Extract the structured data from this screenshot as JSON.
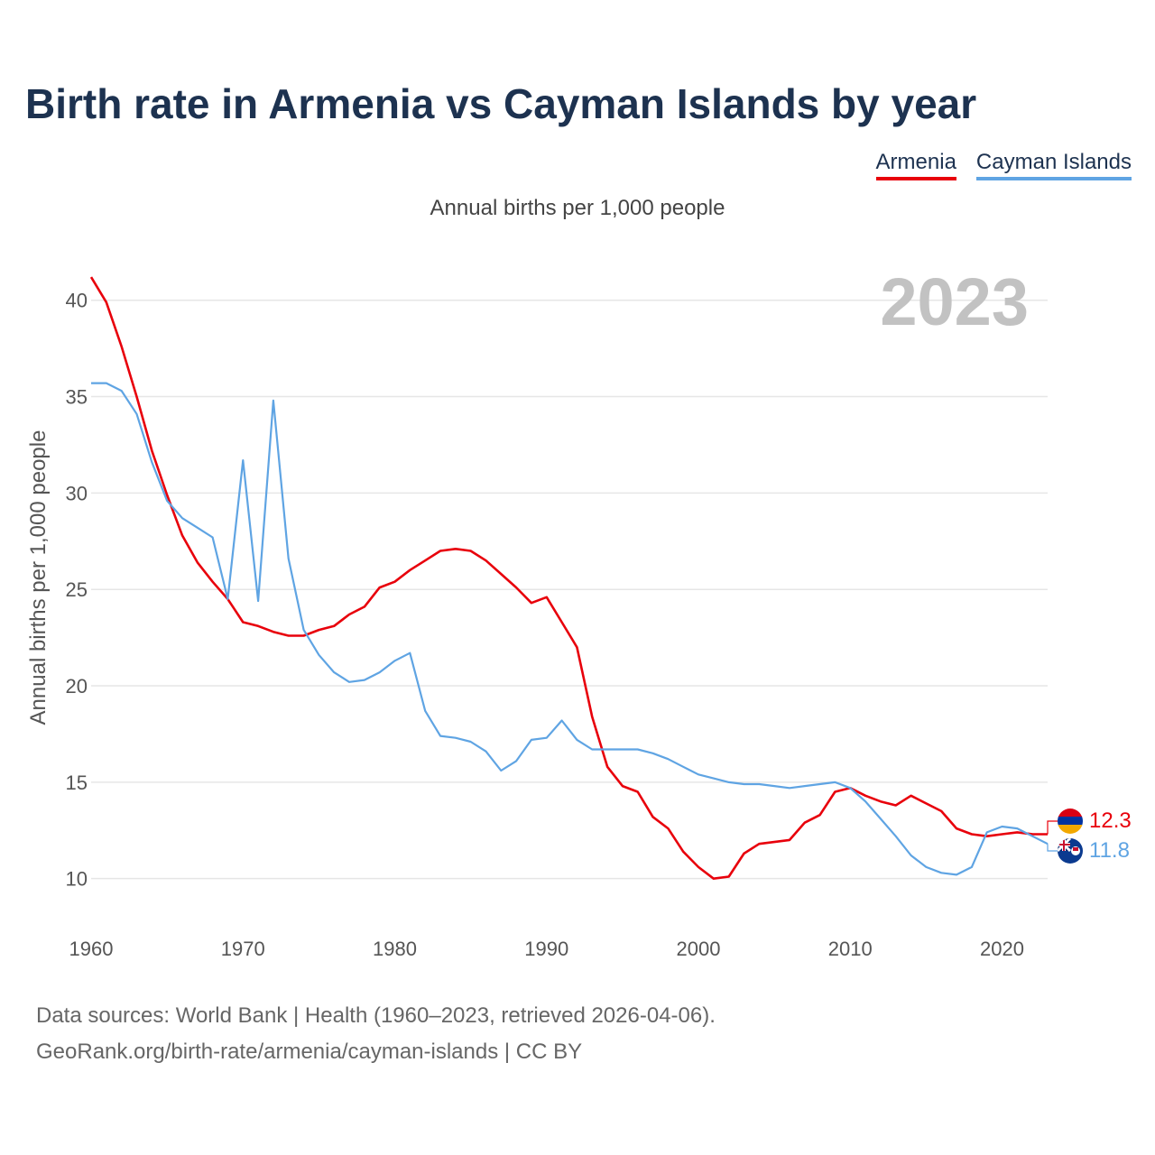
{
  "title": "Birth rate in Armenia vs Cayman Islands by year",
  "subtitle": "Annual births per 1,000 people",
  "legend": [
    {
      "name": "Armenia",
      "color": "#e8000b"
    },
    {
      "name": "Cayman Islands",
      "color": "#5fa4e3"
    }
  ],
  "year_label": "2023",
  "source": {
    "line1": "Data sources: World Bank | Health (1960–2023, retrieved 2026-04-06).",
    "line2": "GeoRank.org/birth-rate/armenia/cayman-islands | CC BY"
  },
  "chart_data": {
    "type": "line",
    "title": "Birth rate in Armenia vs Cayman Islands by year",
    "xlabel": "",
    "ylabel": "Annual births per 1,000 people",
    "xlim": [
      1960,
      2023
    ],
    "ylim": [
      8.3,
      42
    ],
    "x_ticks": [
      1960,
      1970,
      1980,
      1990,
      2000,
      2010,
      2020
    ],
    "y_ticks": [
      10,
      15,
      20,
      25,
      30,
      35,
      40
    ],
    "grid": true,
    "legend_position": "top-right",
    "end_labels": [
      {
        "name": "Armenia",
        "value": "12.3"
      },
      {
        "name": "Cayman Islands",
        "value": "11.8"
      }
    ],
    "x": [
      1960,
      1961,
      1962,
      1963,
      1964,
      1965,
      1966,
      1967,
      1968,
      1969,
      1970,
      1971,
      1972,
      1973,
      1974,
      1975,
      1976,
      1977,
      1978,
      1979,
      1980,
      1981,
      1982,
      1983,
      1984,
      1985,
      1986,
      1987,
      1988,
      1989,
      1990,
      1991,
      1992,
      1993,
      1994,
      1995,
      1996,
      1997,
      1998,
      1999,
      2000,
      2001,
      2002,
      2003,
      2004,
      2005,
      2006,
      2007,
      2008,
      2009,
      2010,
      2011,
      2012,
      2013,
      2014,
      2015,
      2016,
      2017,
      2018,
      2019,
      2020,
      2021,
      2022,
      2023
    ],
    "series": [
      {
        "name": "Armenia",
        "color": "#e8000b",
        "values": [
          41.2,
          39.9,
          37.6,
          35.0,
          32.2,
          29.9,
          27.8,
          26.4,
          25.4,
          24.5,
          23.3,
          23.1,
          22.8,
          22.6,
          22.6,
          22.9,
          23.1,
          23.7,
          24.1,
          25.1,
          25.4,
          26.0,
          26.5,
          27.0,
          27.1,
          27.0,
          26.5,
          25.8,
          25.1,
          24.3,
          24.6,
          23.3,
          22.0,
          18.4,
          15.8,
          14.8,
          14.5,
          13.2,
          12.6,
          11.4,
          10.6,
          10.0,
          10.1,
          11.3,
          11.8,
          11.9,
          12.0,
          12.9,
          13.3,
          14.5,
          14.7,
          14.3,
          14.0,
          13.8,
          14.3,
          13.9,
          13.5,
          12.6,
          12.3,
          12.2,
          12.3,
          12.4,
          12.3,
          12.3
        ]
      },
      {
        "name": "Cayman Islands",
        "color": "#5fa4e3",
        "values": [
          35.7,
          35.7,
          35.3,
          34.1,
          31.6,
          29.6,
          28.7,
          28.2,
          27.7,
          24.5,
          31.7,
          24.4,
          34.8,
          26.6,
          22.9,
          21.6,
          20.7,
          20.2,
          20.3,
          20.7,
          21.3,
          21.7,
          18.7,
          17.4,
          17.3,
          17.1,
          16.6,
          15.6,
          16.1,
          17.2,
          17.3,
          18.2,
          17.2,
          16.7,
          16.7,
          16.7,
          16.7,
          16.5,
          16.2,
          15.8,
          15.4,
          15.2,
          15.0,
          14.9,
          14.9,
          14.8,
          14.7,
          14.8,
          14.9,
          15.0,
          14.7,
          14.0,
          13.1,
          12.2,
          11.2,
          10.6,
          10.3,
          10.2,
          10.6,
          12.4,
          12.7,
          12.6,
          12.2,
          11.8
        ]
      }
    ]
  }
}
